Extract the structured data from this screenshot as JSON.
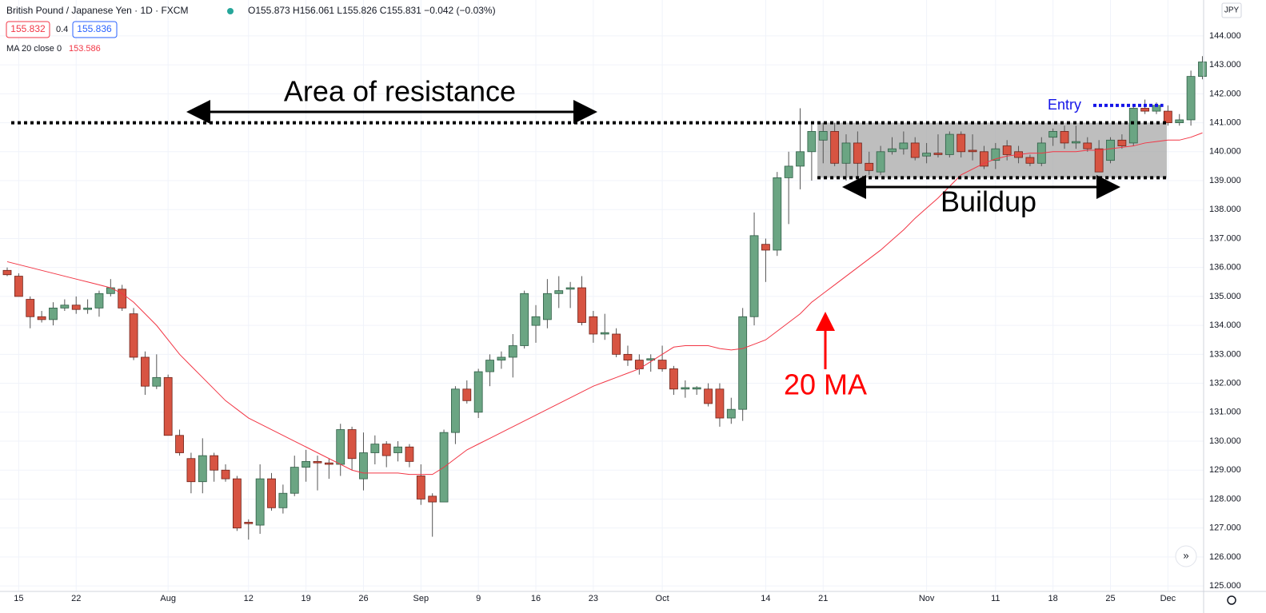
{
  "chart_data": {
    "type": "candlestick",
    "header": {
      "symbol": "British Pound / Japanese Yen · 1D · FXCM",
      "ohlc": "O155.873 H156.061 L155.826 C155.831 −0.042 (−0.03%)",
      "bid": "155.832",
      "spread": "0.4",
      "ask": "155.836",
      "indicator": "MA 20 close 0",
      "indicator_value": "153.586",
      "currency": "JPY"
    },
    "annotations": {
      "resistance": "Area of resistance",
      "buildup": "Buildup",
      "ma": "20 MA",
      "entry": "Entry"
    },
    "levels": {
      "resistance": 141.0,
      "support": 139.1,
      "entry": 141.6
    },
    "up_color": "#6ba583",
    "down_color": "#d75442",
    "categories": [
      null,
      "15",
      null,
      null,
      null,
      null,
      "22",
      null,
      null,
      null,
      null,
      null,
      null,
      null,
      "Aug",
      null,
      null,
      null,
      null,
      null,
      null,
      "12",
      null,
      null,
      null,
      null,
      "19",
      null,
      null,
      null,
      null,
      "26",
      null,
      null,
      null,
      null,
      "Sep",
      null,
      null,
      null,
      null,
      "9",
      null,
      null,
      null,
      null,
      "16",
      null,
      null,
      null,
      null,
      "23",
      null,
      null,
      null,
      null,
      null,
      "Oct",
      null,
      null,
      null,
      null,
      null,
      null,
      null,
      null,
      "14",
      null,
      null,
      null,
      null,
      "21",
      null,
      null,
      null,
      null,
      null,
      null,
      null,
      null,
      "Nov",
      null,
      null,
      null,
      null,
      null,
      "11",
      null,
      null,
      null,
      null,
      "18",
      null,
      null,
      null,
      null,
      "25",
      null,
      null,
      null,
      null,
      "Dec",
      null,
      null,
      null
    ],
    "open": [
      135.9,
      135.7,
      134.9,
      134.3,
      134.2,
      134.6,
      134.7,
      134.55,
      134.6,
      135.1,
      135.25,
      134.4,
      132.9,
      131.9,
      132.2,
      130.2,
      129.4,
      128.6,
      129.5,
      129.0,
      128.7,
      127.2,
      127.1,
      128.7,
      127.7,
      128.2,
      129.1,
      129.3,
      129.25,
      129.2,
      130.4,
      128.7,
      129.6,
      129.9,
      129.6,
      129.8,
      128.8,
      128.1,
      127.9,
      130.3,
      131.8,
      131.0,
      132.4,
      132.8,
      132.9,
      133.3,
      134.0,
      134.2,
      135.1,
      135.25,
      135.3,
      134.3,
      133.7,
      133.7,
      133.0,
      132.8,
      132.8,
      132.8,
      132.5,
      131.8,
      131.8,
      131.8,
      131.8,
      130.8,
      131.1,
      134.3,
      136.8,
      136.6,
      139.1,
      139.5,
      140.0,
      140.4,
      140.7,
      139.6,
      140.3,
      139.6,
      139.3,
      140.0,
      140.1,
      140.3,
      139.85,
      139.95,
      139.9,
      140.6,
      140.05,
      140.0,
      139.7,
      140.2,
      140.0,
      139.8,
      139.6,
      140.5,
      140.7,
      140.3,
      140.3,
      140.1,
      139.7,
      140.4,
      140.3,
      141.5,
      141.4,
      141.4,
      141.0,
      141.1,
      142.6
    ],
    "high": [
      136.0,
      135.8,
      135.0,
      134.5,
      134.8,
      134.9,
      135.0,
      134.9,
      135.2,
      135.6,
      135.4,
      134.6,
      133.1,
      133.0,
      132.3,
      130.4,
      129.6,
      130.1,
      129.6,
      129.2,
      128.8,
      127.3,
      129.2,
      128.9,
      128.5,
      129.5,
      129.7,
      129.5,
      129.4,
      130.6,
      130.5,
      130.3,
      130.2,
      130.0,
      130.0,
      129.9,
      129.2,
      128.2,
      130.4,
      131.9,
      132.1,
      132.5,
      133.0,
      133.1,
      133.7,
      135.2,
      134.7,
      135.6,
      135.7,
      135.5,
      135.7,
      134.5,
      134.4,
      133.9,
      133.3,
      133.0,
      133.0,
      133.3,
      132.6,
      132.1,
      131.9,
      132.0,
      132.0,
      131.5,
      134.6,
      137.9,
      137.0,
      139.3,
      140.0,
      141.5,
      141.0,
      141.0,
      141.0,
      140.6,
      140.7,
      140.0,
      140.2,
      140.5,
      140.7,
      140.5,
      140.3,
      140.6,
      140.7,
      140.7,
      140.6,
      140.2,
      140.3,
      140.4,
      140.2,
      139.9,
      140.5,
      140.8,
      140.9,
      140.9,
      140.5,
      140.4,
      140.5,
      140.6,
      141.6,
      141.8,
      141.7,
      141.6,
      141.3,
      142.8,
      143.3
    ],
    "low": [
      135.7,
      135.0,
      133.9,
      134.1,
      134.0,
      134.5,
      134.4,
      134.4,
      134.3,
      135.0,
      134.5,
      132.8,
      131.6,
      131.8,
      130.2,
      129.5,
      128.2,
      128.2,
      128.6,
      128.6,
      126.9,
      126.6,
      126.8,
      127.6,
      127.5,
      128.1,
      128.6,
      128.3,
      128.7,
      128.8,
      129.0,
      128.3,
      129.2,
      129.1,
      129.3,
      129.1,
      127.8,
      126.7,
      127.9,
      129.9,
      131.3,
      130.8,
      131.9,
      132.5,
      132.2,
      133.2,
      133.4,
      133.9,
      134.6,
      134.6,
      134.0,
      133.4,
      133.5,
      132.9,
      132.6,
      132.3,
      132.4,
      132.4,
      131.6,
      131.5,
      131.6,
      131.2,
      130.5,
      130.6,
      130.7,
      134.0,
      135.5,
      136.4,
      137.5,
      138.7,
      139.0,
      139.6,
      139.5,
      139.0,
      139.1,
      139.2,
      139.2,
      139.9,
      139.9,
      139.7,
      139.6,
      139.8,
      139.8,
      139.8,
      139.7,
      139.4,
      139.4,
      139.7,
      139.6,
      139.5,
      139.5,
      140.2,
      140.1,
      140.1,
      140.0,
      139.3,
      139.6,
      140.1,
      140.2,
      141.3,
      141.3,
      140.9,
      140.9,
      140.9,
      142.5
    ],
    "close": [
      135.75,
      135.0,
      134.3,
      134.2,
      134.6,
      134.7,
      134.55,
      134.6,
      135.1,
      135.3,
      134.6,
      132.9,
      131.9,
      132.2,
      130.2,
      129.6,
      128.6,
      129.5,
      129.0,
      128.7,
      127.0,
      127.15,
      128.7,
      127.7,
      128.2,
      129.1,
      129.3,
      129.25,
      129.2,
      130.4,
      129.4,
      129.6,
      129.9,
      129.5,
      129.8,
      129.3,
      128.0,
      127.9,
      130.3,
      131.8,
      131.4,
      132.4,
      132.8,
      132.9,
      133.3,
      135.1,
      134.3,
      135.1,
      135.2,
      135.3,
      134.1,
      133.7,
      133.75,
      133.0,
      132.8,
      132.5,
      132.85,
      132.5,
      131.8,
      131.85,
      131.85,
      131.3,
      130.8,
      131.1,
      134.3,
      137.1,
      136.6,
      139.1,
      139.5,
      140.0,
      140.7,
      140.7,
      139.6,
      140.3,
      139.6,
      139.35,
      140.0,
      140.1,
      140.3,
      139.8,
      139.95,
      139.9,
      140.6,
      140.0,
      140.0,
      139.5,
      140.1,
      139.9,
      139.8,
      139.6,
      140.3,
      140.7,
      140.3,
      140.35,
      140.1,
      139.3,
      140.4,
      140.2,
      141.5,
      141.4,
      141.6,
      141.0,
      141.1,
      142.6,
      143.1
    ],
    "ma": {
      "color": "#f23645",
      "values": [
        136.2,
        136.1,
        136.0,
        135.9,
        135.8,
        135.7,
        135.6,
        135.5,
        135.4,
        135.3,
        135.1,
        134.8,
        134.4,
        134.0,
        133.5,
        133.0,
        132.6,
        132.2,
        131.8,
        131.4,
        131.1,
        130.8,
        130.6,
        130.4,
        130.2,
        130.0,
        129.8,
        129.6,
        129.4,
        129.2,
        129.0,
        128.9,
        128.9,
        128.9,
        128.9,
        128.85,
        128.85,
        128.85,
        129.1,
        129.4,
        129.7,
        129.9,
        130.1,
        130.3,
        130.5,
        130.7,
        130.9,
        131.1,
        131.3,
        131.5,
        131.7,
        131.9,
        132.05,
        132.2,
        132.35,
        132.5,
        132.75,
        133.0,
        133.25,
        133.3,
        133.3,
        133.3,
        133.2,
        133.15,
        133.2,
        133.35,
        133.5,
        133.8,
        134.1,
        134.4,
        134.8,
        135.1,
        135.4,
        135.7,
        136.0,
        136.3,
        136.6,
        136.95,
        137.3,
        137.7,
        138.05,
        138.4,
        138.8,
        139.2,
        139.4,
        139.6,
        139.75,
        139.85,
        139.9,
        139.95,
        139.95,
        140.0,
        140.0,
        140.0,
        140.05,
        140.05,
        140.1,
        140.15,
        140.2,
        140.3,
        140.35,
        140.4,
        140.4,
        140.5,
        140.65
      ]
    },
    "ylim": [
      124.81,
      145.24
    ],
    "yticks": [
      {
        "value": 125,
        "label": "125.000"
      },
      {
        "value": 126,
        "label": "126.000"
      },
      {
        "value": 127,
        "label": "127.000"
      },
      {
        "value": 128,
        "label": "128.000"
      },
      {
        "value": 129,
        "label": "129.000"
      },
      {
        "value": 130,
        "label": "130.000"
      },
      {
        "value": 131,
        "label": "131.000"
      },
      {
        "value": 132,
        "label": "132.000"
      },
      {
        "value": 133,
        "label": "133.000"
      },
      {
        "value": 134,
        "label": "134.000"
      },
      {
        "value": 135,
        "label": "135.000"
      },
      {
        "value": 136,
        "label": "136.000"
      },
      {
        "value": 137,
        "label": "137.000"
      },
      {
        "value": 138,
        "label": "138.000"
      },
      {
        "value": 139,
        "label": "139.000"
      },
      {
        "value": 140,
        "label": "140.000"
      },
      {
        "value": 141,
        "label": "141.000"
      },
      {
        "value": 142,
        "label": "142.000"
      },
      {
        "value": 143,
        "label": "143.000"
      },
      {
        "value": 144,
        "label": "144.000"
      }
    ],
    "grid": true
  }
}
